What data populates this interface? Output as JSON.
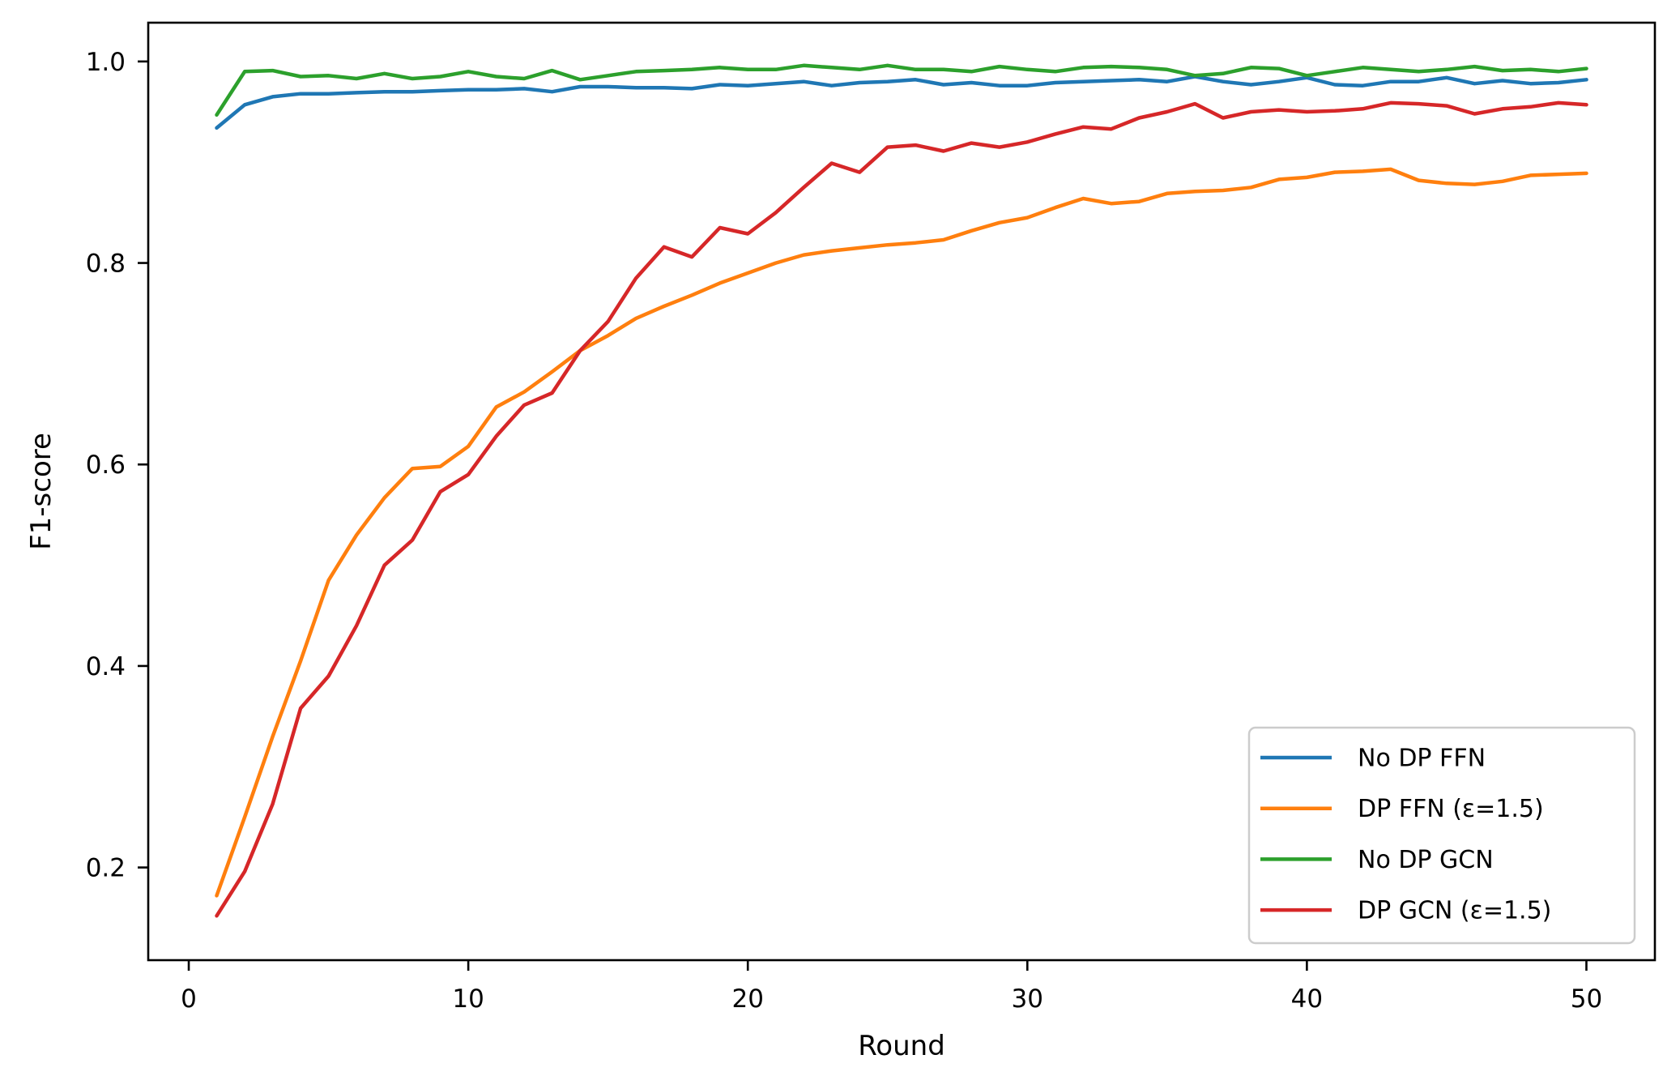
{
  "chart_data": {
    "type": "line",
    "title": "",
    "xlabel": "Round",
    "ylabel": "F1-score",
    "grid": false,
    "legend_position": "lower right",
    "background": "#ffffff",
    "axis_color": "#000000",
    "legend_border_color": "#cccccc",
    "xlim": [
      -1.45,
      52.45
    ],
    "ylim": [
      0.108,
      1.0385
    ],
    "xticks": [
      {
        "v": 0,
        "label": "0"
      },
      {
        "v": 10,
        "label": "10"
      },
      {
        "v": 20,
        "label": "20"
      },
      {
        "v": 30,
        "label": "30"
      },
      {
        "v": 40,
        "label": "40"
      },
      {
        "v": 50,
        "label": "50"
      }
    ],
    "yticks": [
      {
        "v": 0.2,
        "label": "0.2"
      },
      {
        "v": 0.4,
        "label": "0.4"
      },
      {
        "v": 0.6,
        "label": "0.6"
      },
      {
        "v": 0.8,
        "label": "0.8"
      },
      {
        "v": 1.0,
        "label": "1.0"
      }
    ],
    "x": [
      1,
      2,
      3,
      4,
      5,
      6,
      7,
      8,
      9,
      10,
      11,
      12,
      13,
      14,
      15,
      16,
      17,
      18,
      19,
      20,
      21,
      22,
      23,
      24,
      25,
      26,
      27,
      28,
      29,
      30,
      31,
      32,
      33,
      34,
      35,
      36,
      37,
      38,
      39,
      40,
      41,
      42,
      43,
      44,
      45,
      46,
      47,
      48,
      49,
      50
    ],
    "series": [
      {
        "name": "No DP FFN",
        "color": "#1f77b4",
        "values": [
          0.934,
          0.957,
          0.965,
          0.968,
          0.968,
          0.969,
          0.97,
          0.97,
          0.971,
          0.972,
          0.972,
          0.973,
          0.97,
          0.975,
          0.975,
          0.974,
          0.974,
          0.973,
          0.977,
          0.976,
          0.978,
          0.98,
          0.976,
          0.979,
          0.98,
          0.982,
          0.977,
          0.979,
          0.976,
          0.976,
          0.979,
          0.98,
          0.981,
          0.982,
          0.98,
          0.985,
          0.98,
          0.977,
          0.98,
          0.984,
          0.977,
          0.976,
          0.98,
          0.98,
          0.984,
          0.978,
          0.981,
          0.978,
          0.979,
          0.982
        ]
      },
      {
        "name": "DP FFN (ε=1.5)",
        "color": "#ff7f0e",
        "values": [
          0.172,
          0.25,
          0.33,
          0.405,
          0.485,
          0.53,
          0.567,
          0.596,
          0.598,
          0.618,
          0.657,
          0.672,
          0.692,
          0.713,
          0.728,
          0.745,
          0.757,
          0.768,
          0.78,
          0.79,
          0.8,
          0.808,
          0.812,
          0.815,
          0.818,
          0.82,
          0.823,
          0.832,
          0.84,
          0.845,
          0.855,
          0.864,
          0.859,
          0.861,
          0.869,
          0.871,
          0.872,
          0.875,
          0.883,
          0.885,
          0.89,
          0.891,
          0.893,
          0.882,
          0.879,
          0.878,
          0.881,
          0.887,
          0.888,
          0.889
        ]
      },
      {
        "name": "No DP GCN",
        "color": "#2ca02c",
        "values": [
          0.947,
          0.99,
          0.991,
          0.985,
          0.986,
          0.983,
          0.988,
          0.983,
          0.985,
          0.99,
          0.985,
          0.983,
          0.991,
          0.982,
          0.986,
          0.99,
          0.991,
          0.992,
          0.994,
          0.992,
          0.992,
          0.996,
          0.994,
          0.992,
          0.996,
          0.992,
          0.992,
          0.99,
          0.995,
          0.992,
          0.99,
          0.994,
          0.995,
          0.994,
          0.992,
          0.986,
          0.988,
          0.994,
          0.993,
          0.986,
          0.99,
          0.994,
          0.992,
          0.99,
          0.992,
          0.995,
          0.991,
          0.992,
          0.99,
          0.993
        ]
      },
      {
        "name": "DP GCN (ε=1.5)",
        "color": "#d62728",
        "values": [
          0.152,
          0.196,
          0.263,
          0.358,
          0.39,
          0.44,
          0.5,
          0.525,
          0.573,
          0.59,
          0.628,
          0.659,
          0.671,
          0.713,
          0.742,
          0.785,
          0.816,
          0.806,
          0.835,
          0.829,
          0.85,
          0.875,
          0.899,
          0.89,
          0.915,
          0.917,
          0.911,
          0.919,
          0.915,
          0.92,
          0.928,
          0.935,
          0.933,
          0.944,
          0.95,
          0.958,
          0.944,
          0.95,
          0.952,
          0.95,
          0.951,
          0.953,
          0.959,
          0.958,
          0.956,
          0.948,
          0.953,
          0.955,
          0.959,
          0.957
        ]
      }
    ]
  }
}
